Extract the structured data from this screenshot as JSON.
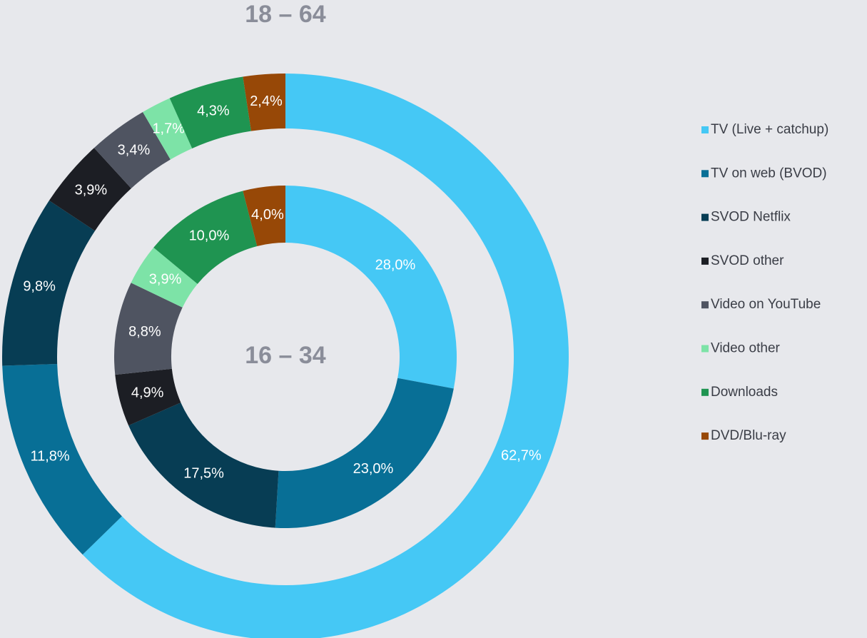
{
  "chart_data": {
    "type": "donut",
    "categories": [
      "TV (Live + catchup)",
      "TV on web (BVOD)",
      "SVOD Netflix",
      "SVOD other",
      "Video on YouTube",
      "Video other",
      "Downloads",
      "DVD/Blu-ray"
    ],
    "colors": [
      "#45c8f5",
      "#086f96",
      "#073d54",
      "#1c1e24",
      "#4f5461",
      "#7de3a7",
      "#1f9451",
      "#974807"
    ],
    "series": [
      {
        "name": "18 – 64",
        "values": [
          62.7,
          11.8,
          9.8,
          3.9,
          3.4,
          1.7,
          4.3,
          2.4
        ],
        "value_labels": [
          "62,7%",
          "11,8%",
          "9,8%",
          "3,9%",
          "3,4%",
          "1,7%",
          "4,3%",
          "2,4%"
        ]
      },
      {
        "name": "16 – 34",
        "values": [
          28.0,
          23.0,
          17.5,
          4.9,
          8.8,
          3.9,
          10.0,
          4.0
        ],
        "value_labels": [
          "28,0%",
          "23,0%",
          "17,5%",
          "4,9%",
          "8,8%",
          "3,9%",
          "10,0%",
          "4,0%"
        ]
      }
    ],
    "legend": "right"
  }
}
